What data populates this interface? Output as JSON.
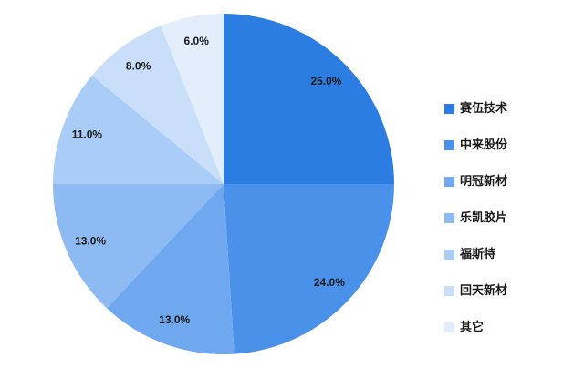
{
  "chart_data": {
    "type": "pie",
    "title": "",
    "categories": [
      "赛伍技术",
      "中来股份",
      "明冠新材",
      "乐凯胶片",
      "福斯特",
      "回天新材",
      "其它"
    ],
    "values": [
      25.0,
      24.0,
      13.0,
      13.0,
      11.0,
      8.0,
      6.0
    ],
    "labels": [
      "25.0%",
      "24.0%",
      "13.0%",
      "13.0%",
      "11.0%",
      "8.0%",
      "6.0%"
    ],
    "colors": [
      "#2b7de1",
      "#4a92e9",
      "#6fa8ef",
      "#8dbaf3",
      "#aacdf7",
      "#c8def9",
      "#e3eefc"
    ],
    "legend_position": "right",
    "start_angle_deg": 0,
    "direction": "clockwise",
    "unit": "%"
  },
  "layout": {
    "background": "#ffffff",
    "slice_label_color": "#1a1a1a",
    "legend_text_color": "#1a1a1a"
  }
}
